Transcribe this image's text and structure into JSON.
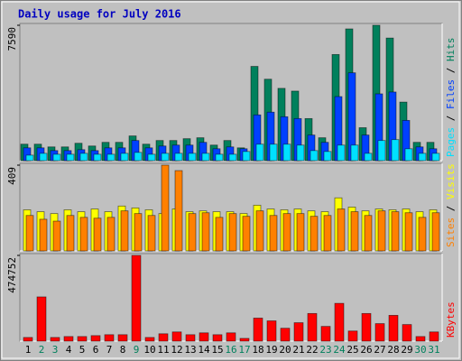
{
  "chart_data": [
    {
      "type": "bar",
      "title": "Daily usage for July 2016",
      "ylim": [
        0,
        7590
      ],
      "yticks": [
        7590
      ],
      "separator": "/",
      "series": [
        {
          "name": "Hits",
          "color": "#00805c",
          "values": [
            923,
            923,
            770,
            770,
            975,
            821,
            1026,
            1026,
            1385,
            923,
            1129,
            1129,
            1231,
            1283,
            872,
            1129,
            718,
            5284,
            4566,
            4053,
            3899,
            2360,
            1283,
            5951,
            7387,
            1847,
            7590,
            6874,
            3283,
            1026,
            1026
          ]
        },
        {
          "name": "Files",
          "color": "#0040ff",
          "values": [
            718,
            718,
            564,
            564,
            616,
            564,
            718,
            718,
            1129,
            718,
            821,
            872,
            872,
            1026,
            667,
            770,
            667,
            2565,
            2719,
            2462,
            2360,
            1436,
            1026,
            3591,
            4925,
            1436,
            3745,
            3848,
            2257,
            770,
            667
          ]
        },
        {
          "name": "Pages",
          "color": "#00e0ff",
          "values": [
            308,
            410,
            359,
            359,
            410,
            359,
            359,
            410,
            462,
            359,
            410,
            410,
            410,
            410,
            359,
            359,
            513,
            923,
            923,
            923,
            872,
            564,
            513,
            872,
            872,
            410,
            1129,
            1180,
            667,
            410,
            410
          ]
        }
      ]
    },
    {
      "type": "bar",
      "ylim": [
        0,
        409
      ],
      "yticks": [
        409
      ],
      "separator": "/",
      "series": [
        {
          "name": "Visits",
          "color": "#ffff00",
          "values": [
            196,
            187,
            178,
            196,
            187,
            200,
            187,
            214,
            205,
            196,
            178,
            200,
            187,
            191,
            187,
            187,
            178,
            218,
            200,
            196,
            200,
            191,
            187,
            253,
            209,
            191,
            200,
            196,
            200,
            187,
            196
          ]
        },
        {
          "name": "Sites",
          "color": "#ff8000",
          "values": [
            169,
            151,
            142,
            169,
            160,
            156,
            160,
            191,
            178,
            169,
            409,
            383,
            178,
            182,
            160,
            178,
            165,
            191,
            169,
            178,
            178,
            165,
            169,
            200,
            187,
            169,
            191,
            187,
            182,
            160,
            182
          ]
        }
      ]
    },
    {
      "type": "bar",
      "ylim": [
        0,
        474752
      ],
      "yticks": [
        474752
      ],
      "categories": [
        "1",
        "2",
        "3",
        "4",
        "5",
        "6",
        "7",
        "8",
        "9",
        "10",
        "11",
        "12",
        "13",
        "14",
        "15",
        "16",
        "17",
        "18",
        "19",
        "20",
        "21",
        "22",
        "23",
        "24",
        "25",
        "26",
        "27",
        "28",
        "29",
        "30",
        "31"
      ],
      "category_colors": [
        "#000000",
        "#00805c",
        "#00805c",
        "#000000",
        "#000000",
        "#000000",
        "#000000",
        "#000000",
        "#00805c",
        "#000000",
        "#000000",
        "#000000",
        "#000000",
        "#000000",
        "#000000",
        "#00805c",
        "#00805c",
        "#000000",
        "#000000",
        "#000000",
        "#000000",
        "#000000",
        "#00805c",
        "#00805c",
        "#000000",
        "#000000",
        "#000000",
        "#000000",
        "#000000",
        "#00805c",
        "#00805c"
      ],
      "series": [
        {
          "name": "KBytes",
          "color": "#ff0000",
          "values": [
            20420,
            245040,
            20420,
            25525,
            25525,
            30630,
            35735,
            35735,
            474752,
            20420,
            40840,
            51050,
            35735,
            45945,
            35735,
            45945,
            15315,
            127625,
            112310,
            71470,
            102100,
            153150,
            81680,
            209305,
            56155,
            153150,
            96995,
            142940,
            91890,
            25525,
            51050
          ]
        }
      ]
    }
  ]
}
